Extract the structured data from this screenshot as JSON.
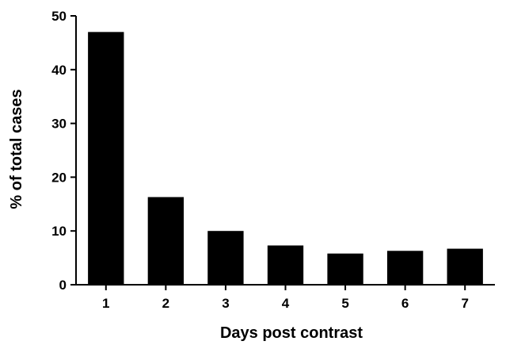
{
  "chart_data": {
    "type": "bar",
    "categories": [
      "1",
      "2",
      "3",
      "4",
      "5",
      "6",
      "7"
    ],
    "values": [
      47,
      16.3,
      10,
      7.3,
      5.8,
      6.3,
      6.7
    ],
    "xlabel": "Days post contrast",
    "ylabel": "% of total cases",
    "ylim": [
      0,
      50
    ],
    "yticks": [
      "0",
      "10",
      "20",
      "30",
      "40",
      "50"
    ],
    "grid": false,
    "bar_color": "#000000"
  }
}
